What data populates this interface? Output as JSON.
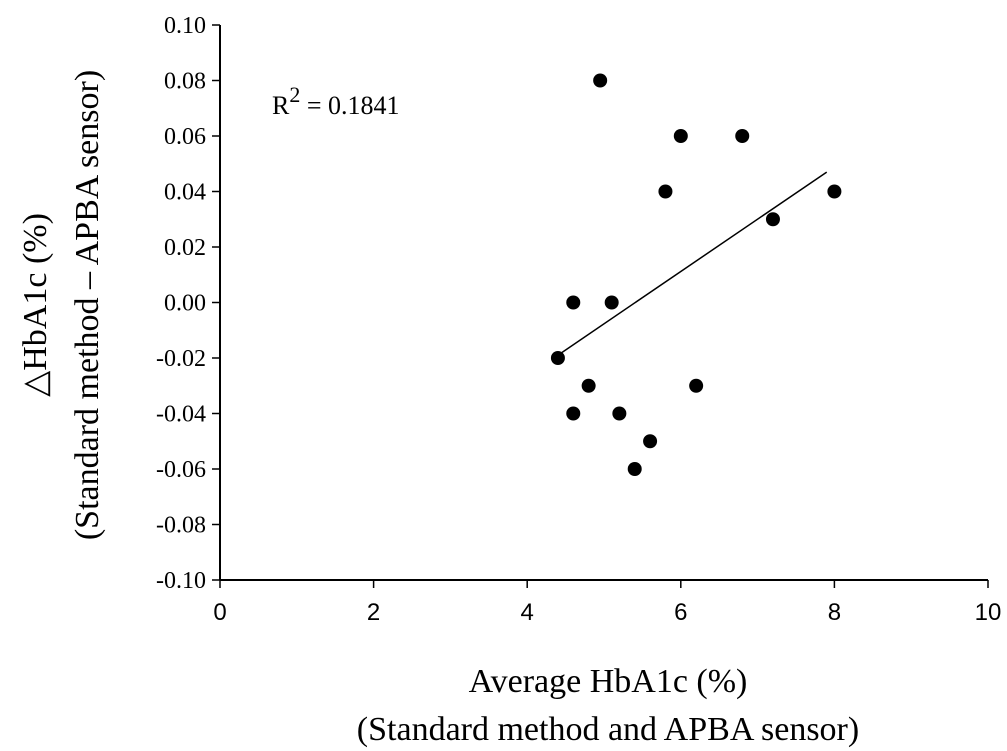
{
  "chart_data": {
    "type": "scatter",
    "xlabel_line1": "Average HbA1c (%)",
    "xlabel_line2": "(Standard method and APBA sensor)",
    "ylabel_line1": "△HbA1c (%)",
    "ylabel_line2": "(Standard method – APBA sensor)",
    "xlim": [
      0,
      10
    ],
    "ylim": [
      -0.1,
      0.1
    ],
    "xticks": [
      "0",
      "2",
      "4",
      "6",
      "8",
      "10"
    ],
    "yticks": [
      "-0.10",
      "-0.08",
      "-0.06",
      "-0.04",
      "-0.02",
      "0.00",
      "0.02",
      "0.04",
      "0.06",
      "0.08",
      "0.10"
    ],
    "grid": false,
    "annotation": {
      "base": "R",
      "sup": "2",
      "rest": " = 0.1841"
    },
    "points": [
      {
        "x": 4.4,
        "y": -0.02
      },
      {
        "x": 4.6,
        "y": 0.0
      },
      {
        "x": 4.6,
        "y": -0.04
      },
      {
        "x": 4.8,
        "y": -0.03
      },
      {
        "x": 4.95,
        "y": 0.08
      },
      {
        "x": 5.1,
        "y": 0.0
      },
      {
        "x": 5.2,
        "y": -0.04
      },
      {
        "x": 5.4,
        "y": -0.06
      },
      {
        "x": 5.6,
        "y": -0.05
      },
      {
        "x": 5.8,
        "y": 0.04
      },
      {
        "x": 6.0,
        "y": 0.06
      },
      {
        "x": 6.2,
        "y": -0.03
      },
      {
        "x": 6.8,
        "y": 0.06
      },
      {
        "x": 7.2,
        "y": 0.03
      },
      {
        "x": 8.0,
        "y": 0.04
      }
    ],
    "trendline": {
      "x": [
        4.4,
        7.9
      ],
      "y": [
        -0.019,
        0.047
      ]
    }
  }
}
